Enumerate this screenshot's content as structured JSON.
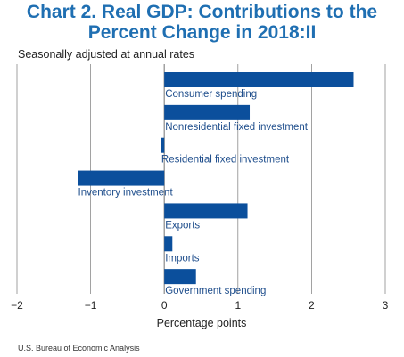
{
  "chart_data": {
    "type": "bar",
    "orientation": "horizontal",
    "title_lines": [
      "Chart 2. Real GDP: Contributions to the",
      "Percent Change in 2018:II"
    ],
    "subtitle": "Seasonally adjusted at annual rates",
    "xlabel": "Percentage points",
    "xlim": [
      -2,
      3
    ],
    "xticks": [
      -2,
      -1,
      0,
      1,
      2,
      3
    ],
    "xtick_labels": [
      "−2",
      "−1",
      "0",
      "1",
      "2",
      "3"
    ],
    "grid": true,
    "categories": [
      "Consumer spending",
      "Nonresidential fixed investment",
      "Residential fixed investment",
      "Inventory investment",
      "Exports",
      "Imports",
      "Government spending"
    ],
    "values": [
      2.57,
      1.16,
      -0.04,
      -1.17,
      1.13,
      0.11,
      0.43
    ],
    "bar_color": "#0b4f9c",
    "label_color": "#1f4e8c",
    "grid_color": "#8a8a8a"
  },
  "source": "U.S. Bureau of Economic Analysis"
}
